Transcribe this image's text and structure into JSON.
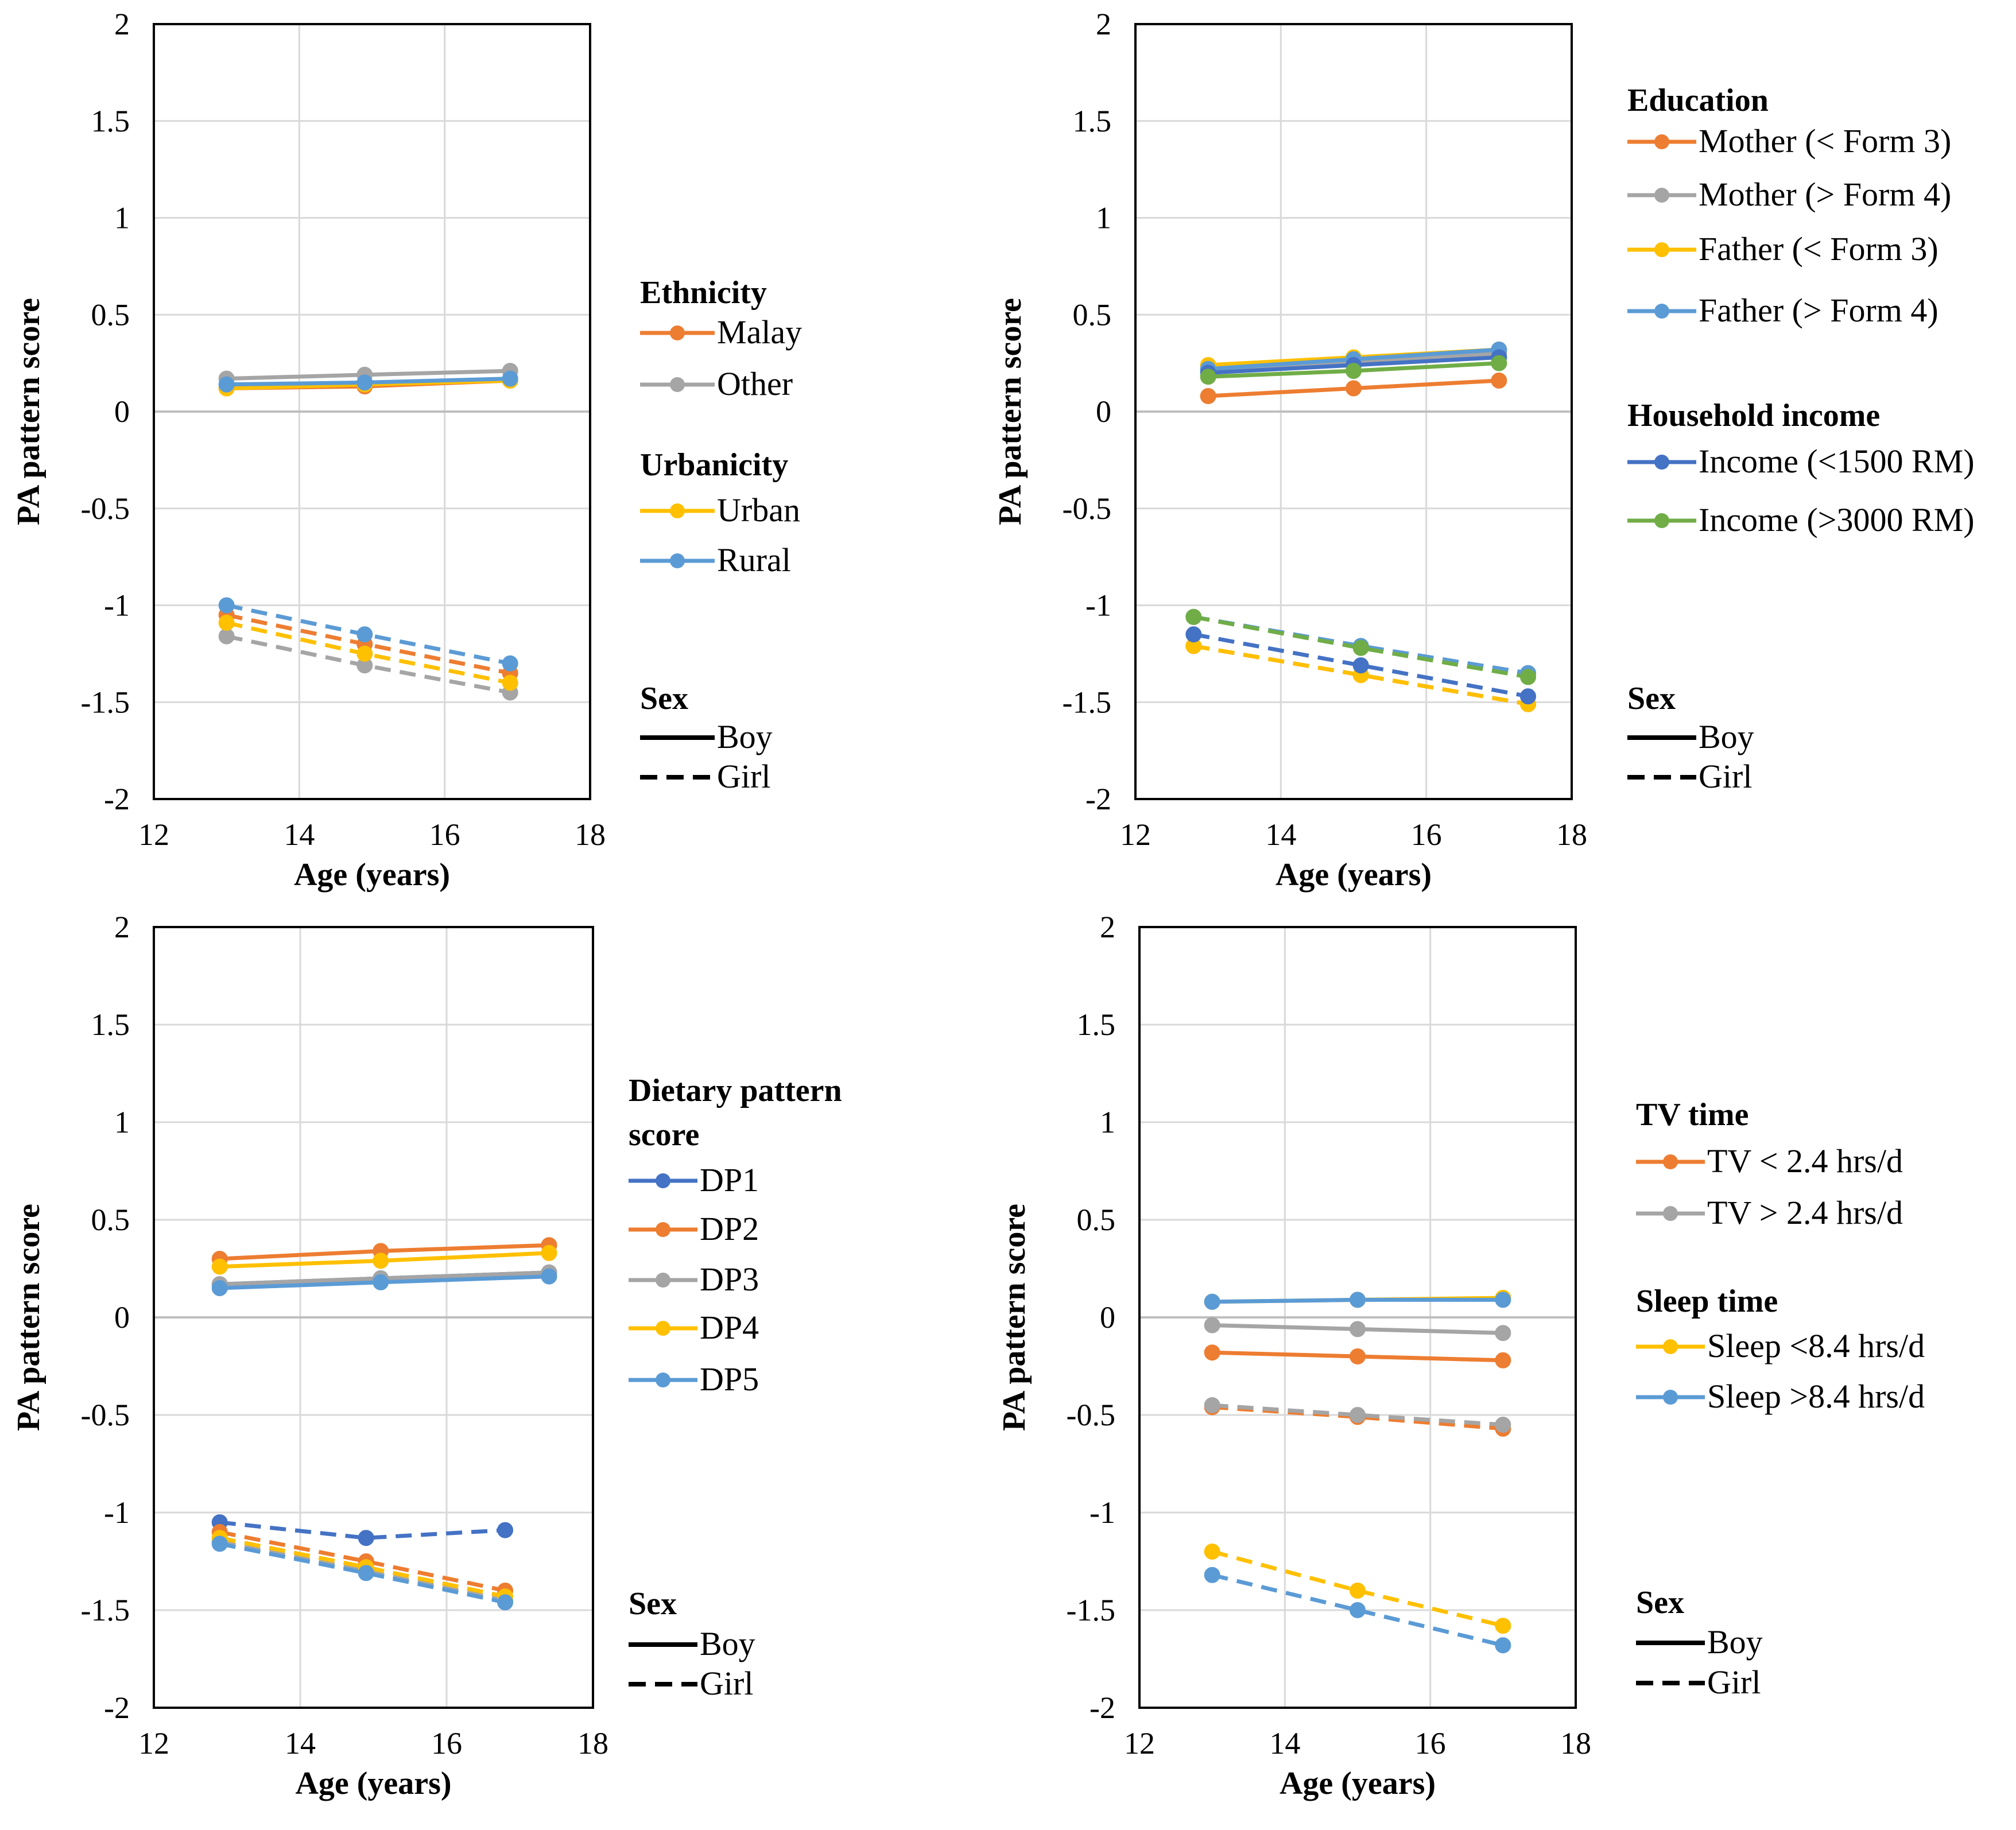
{
  "colors": {
    "orange": "#ED7D31",
    "gray": "#A5A5A5",
    "yellow": "#FFC000",
    "lightblue": "#5B9BD5",
    "darkblue": "#4472C4",
    "green": "#70AD47",
    "grid": "#D9D9D9",
    "zero": "#BFBFBF",
    "frame": "#000000"
  },
  "chart_data": [
    {
      "type": "line",
      "title": "",
      "xlabel": "Age (years)",
      "ylabel": "PA pattern score",
      "xlim": [
        12,
        18
      ],
      "ylim": [
        -2,
        2
      ],
      "xticks": [
        12,
        14,
        16,
        18
      ],
      "yticks": [
        2,
        1.5,
        1,
        0.5,
        0,
        -0.5,
        -1,
        -1.5,
        -2
      ],
      "ytick_labels": [
        "2",
        "1.5",
        "1",
        "0.5",
        "0",
        "-0.5",
        "-1",
        "-1.5",
        "-2"
      ],
      "legend_groups": [
        {
          "title": "Ethnicity",
          "items": [
            {
              "label": "Malay",
              "color": "orange"
            },
            {
              "label": "Other",
              "color": "gray"
            }
          ]
        },
        {
          "title": "Urbanicity",
          "items": [
            {
              "label": "Urban",
              "color": "yellow"
            },
            {
              "label": "Rural",
              "color": "lightblue"
            }
          ]
        }
      ],
      "sex_legend": {
        "title": "Sex",
        "items": [
          {
            "label": "Boy",
            "dash": false
          },
          {
            "label": "Girl",
            "dash": true
          }
        ]
      },
      "series": [
        {
          "name": "Malay - Boy",
          "color": "orange",
          "dash": false,
          "x": [
            13,
            14.9,
            16.9
          ],
          "y": [
            0.12,
            0.13,
            0.16
          ]
        },
        {
          "name": "Other - Boy",
          "color": "gray",
          "dash": false,
          "x": [
            13,
            14.9,
            16.9
          ],
          "y": [
            0.17,
            0.19,
            0.21
          ]
        },
        {
          "name": "Urban - Boy",
          "color": "yellow",
          "dash": false,
          "x": [
            13,
            14.9,
            16.9
          ],
          "y": [
            0.12,
            0.14,
            0.16
          ]
        },
        {
          "name": "Rural - Boy",
          "color": "lightblue",
          "dash": false,
          "x": [
            13,
            14.9,
            16.9
          ],
          "y": [
            0.14,
            0.15,
            0.17
          ]
        },
        {
          "name": "Malay - Girl",
          "color": "orange",
          "dash": true,
          "x": [
            13,
            14.9,
            16.9
          ],
          "y": [
            -1.05,
            -1.2,
            -1.35
          ]
        },
        {
          "name": "Other - Girl",
          "color": "gray",
          "dash": true,
          "x": [
            13,
            14.9,
            16.9
          ],
          "y": [
            -1.16,
            -1.31,
            -1.45
          ]
        },
        {
          "name": "Urban - Girl",
          "color": "yellow",
          "dash": true,
          "x": [
            13,
            14.9,
            16.9
          ],
          "y": [
            -1.09,
            -1.25,
            -1.4
          ]
        },
        {
          "name": "Rural - Girl",
          "color": "lightblue",
          "dash": true,
          "x": [
            13,
            14.9,
            16.9
          ],
          "y": [
            -1.0,
            -1.15,
            -1.3
          ]
        }
      ]
    },
    {
      "type": "line",
      "title": "",
      "xlabel": "Age (years)",
      "ylabel": "PA pattern score",
      "xlim": [
        12,
        18
      ],
      "ylim": [
        -2,
        2
      ],
      "xticks": [
        12,
        14,
        16,
        18
      ],
      "yticks": [
        2,
        1.5,
        1,
        0.5,
        0,
        -0.5,
        -1,
        -1.5,
        -2
      ],
      "ytick_labels": [
        "2",
        "1.5",
        "1",
        "0.5",
        "0",
        "-0.5",
        "-1",
        "-1.5",
        "-2"
      ],
      "legend_groups": [
        {
          "title": "Education",
          "items": [
            {
              "label": "Mother (< Form 3)",
              "color": "orange"
            },
            {
              "label": "Mother (> Form 4)",
              "color": "gray"
            },
            {
              "label": "Father (< Form 3)",
              "color": "yellow"
            },
            {
              "label": "Father (> Form 4)",
              "color": "lightblue"
            }
          ]
        },
        {
          "title": "Household income",
          "items": [
            {
              "label": "Income (<1500 RM)",
              "color": "darkblue"
            },
            {
              "label": "Income (>3000 RM)",
              "color": "green"
            }
          ]
        }
      ],
      "sex_legend": {
        "title": "Sex",
        "items": [
          {
            "label": "Boy",
            "dash": false
          },
          {
            "label": "Girl",
            "dash": true
          }
        ]
      },
      "series": [
        {
          "name": "Mother (< Form 3) - Boy",
          "color": "orange",
          "dash": false,
          "x": [
            13,
            15,
            17
          ],
          "y": [
            0.08,
            0.12,
            0.16
          ]
        },
        {
          "name": "Mother (> Form 4) - Boy",
          "color": "gray",
          "dash": false,
          "x": [
            13,
            15,
            17
          ],
          "y": [
            0.22,
            0.26,
            0.3
          ]
        },
        {
          "name": "Father (< Form 3) - Boy",
          "color": "yellow",
          "dash": false,
          "x": [
            13,
            15,
            17
          ],
          "y": [
            0.24,
            0.28,
            0.32
          ]
        },
        {
          "name": "Father (> Form 4) - Boy",
          "color": "lightblue",
          "dash": false,
          "x": [
            13,
            15,
            17
          ],
          "y": [
            0.22,
            0.27,
            0.32
          ]
        },
        {
          "name": "Income (<1500 RM) - Boy",
          "color": "darkblue",
          "dash": false,
          "x": [
            13,
            15,
            17
          ],
          "y": [
            0.2,
            0.24,
            0.28
          ]
        },
        {
          "name": "Income (>3000 RM) - Boy",
          "color": "green",
          "dash": false,
          "x": [
            13,
            15,
            17
          ],
          "y": [
            0.18,
            0.21,
            0.25
          ]
        },
        {
          "name": "Mother (< Form 3) - Girl",
          "color": "orange",
          "dash": true,
          "x": [
            12.8,
            15.1,
            17.4
          ],
          "y": [
            -1.21,
            -1.36,
            -1.51
          ]
        },
        {
          "name": "Mother (> Form 4) - Girl",
          "color": "gray",
          "dash": true,
          "x": [
            12.8,
            15.1,
            17.4
          ],
          "y": [
            -1.06,
            -1.21,
            -1.35
          ]
        },
        {
          "name": "Father (< Form 3) - Girl",
          "color": "yellow",
          "dash": true,
          "x": [
            12.8,
            15.1,
            17.4
          ],
          "y": [
            -1.21,
            -1.36,
            -1.51
          ]
        },
        {
          "name": "Father (> Form 4) - Girl",
          "color": "lightblue",
          "dash": true,
          "x": [
            12.8,
            15.1,
            17.4
          ],
          "y": [
            -1.06,
            -1.21,
            -1.35
          ]
        },
        {
          "name": "Income (<1500 RM) - Girl",
          "color": "darkblue",
          "dash": true,
          "x": [
            12.8,
            15.1,
            17.4
          ],
          "y": [
            -1.15,
            -1.31,
            -1.47
          ]
        },
        {
          "name": "Income (>3000 RM) - Girl",
          "color": "green",
          "dash": true,
          "x": [
            12.8,
            15.1,
            17.4
          ],
          "y": [
            -1.06,
            -1.22,
            -1.37
          ]
        }
      ]
    },
    {
      "type": "line",
      "title": "",
      "xlabel": "Age (years)",
      "ylabel": "PA pattern score",
      "xlim": [
        12,
        18
      ],
      "ylim": [
        -2,
        2
      ],
      "xticks": [
        12,
        14,
        16,
        18
      ],
      "yticks": [
        2,
        1.5,
        1,
        0.5,
        0,
        -0.5,
        -1,
        -1.5,
        -2
      ],
      "ytick_labels": [
        "2",
        "1.5",
        "1",
        "0.5",
        "0",
        "-0.5",
        "-1",
        "-1.5",
        "-2"
      ],
      "legend_groups": [
        {
          "title": "Dietary pattern score",
          "items": [
            {
              "label": "DP1",
              "color": "darkblue"
            },
            {
              "label": "DP2",
              "color": "orange"
            },
            {
              "label": "DP3",
              "color": "gray"
            },
            {
              "label": "DP4",
              "color": "yellow"
            },
            {
              "label": "DP5",
              "color": "lightblue"
            }
          ]
        }
      ],
      "sex_legend": {
        "title": "Sex",
        "items": [
          {
            "label": "Boy",
            "dash": false
          },
          {
            "label": "Girl",
            "dash": true
          }
        ]
      },
      "series": [
        {
          "name": "DP1 - Boy",
          "color": "darkblue",
          "dash": false,
          "x": [
            12.9,
            15.1,
            17.4
          ],
          "y": [
            0.17,
            0.2,
            0.23
          ]
        },
        {
          "name": "DP2 - Boy",
          "color": "orange",
          "dash": false,
          "x": [
            12.9,
            15.1,
            17.4
          ],
          "y": [
            0.3,
            0.34,
            0.37
          ]
        },
        {
          "name": "DP3 - Boy",
          "color": "gray",
          "dash": false,
          "x": [
            12.9,
            15.1,
            17.4
          ],
          "y": [
            0.17,
            0.2,
            0.23
          ]
        },
        {
          "name": "DP4 - Boy",
          "color": "yellow",
          "dash": false,
          "x": [
            12.9,
            15.1,
            17.4
          ],
          "y": [
            0.26,
            0.29,
            0.33
          ]
        },
        {
          "name": "DP5 - Boy",
          "color": "lightblue",
          "dash": false,
          "x": [
            12.9,
            15.1,
            17.4
          ],
          "y": [
            0.15,
            0.18,
            0.21
          ]
        },
        {
          "name": "DP1 - Girl",
          "color": "darkblue",
          "dash": true,
          "x": [
            12.9,
            14.9,
            16.8
          ],
          "y": [
            -1.05,
            -1.13,
            -1.09
          ]
        },
        {
          "name": "DP2 - Girl",
          "color": "orange",
          "dash": true,
          "x": [
            12.9,
            14.9,
            16.8
          ],
          "y": [
            -1.1,
            -1.25,
            -1.4
          ]
        },
        {
          "name": "DP3 - Girl",
          "color": "gray",
          "dash": true,
          "x": [
            12.9,
            14.9,
            16.8
          ],
          "y": [
            -1.15,
            -1.3,
            -1.45
          ]
        },
        {
          "name": "DP4 - Girl",
          "color": "yellow",
          "dash": true,
          "x": [
            12.9,
            14.9,
            16.8
          ],
          "y": [
            -1.13,
            -1.28,
            -1.43
          ]
        },
        {
          "name": "DP5 - Girl",
          "color": "lightblue",
          "dash": true,
          "x": [
            12.9,
            14.9,
            16.8
          ],
          "y": [
            -1.16,
            -1.31,
            -1.46
          ]
        }
      ]
    },
    {
      "type": "line",
      "title": "",
      "xlabel": "Age (years)",
      "ylabel": "PA pattern score",
      "xlim": [
        12,
        18
      ],
      "ylim": [
        -2,
        2
      ],
      "xticks": [
        12,
        14,
        16,
        18
      ],
      "yticks": [
        2,
        1.5,
        1,
        0.5,
        0,
        -0.5,
        -1,
        -1.5,
        -2
      ],
      "ytick_labels": [
        "2",
        "1.5",
        "1",
        "0.5",
        "0",
        "-0.5",
        "-1",
        "-1.5",
        "-2"
      ],
      "legend_groups": [
        {
          "title": "TV time",
          "items": [
            {
              "label": "TV < 2.4 hrs/d",
              "color": "orange"
            },
            {
              "label": "TV > 2.4 hrs/d",
              "color": "gray"
            }
          ]
        },
        {
          "title": "Sleep time",
          "items": [
            {
              "label": "Sleep <8.4 hrs/d",
              "color": "yellow"
            },
            {
              "label": "Sleep >8.4 hrs/d",
              "color": "lightblue"
            }
          ]
        }
      ],
      "sex_legend": {
        "title": "Sex",
        "items": [
          {
            "label": "Boy",
            "dash": false
          },
          {
            "label": "Girl",
            "dash": true
          }
        ]
      },
      "series": [
        {
          "name": "TV < 2.4 hrs/d - Boy",
          "color": "orange",
          "dash": false,
          "x": [
            13,
            15,
            17
          ],
          "y": [
            -0.18,
            -0.2,
            -0.22
          ]
        },
        {
          "name": "TV > 2.4 hrs/d - Boy",
          "color": "gray",
          "dash": false,
          "x": [
            13,
            15,
            17
          ],
          "y": [
            -0.04,
            -0.06,
            -0.08
          ]
        },
        {
          "name": "Sleep <8.4 hrs/d - Boy",
          "color": "yellow",
          "dash": false,
          "x": [
            13,
            15,
            17
          ],
          "y": [
            0.08,
            0.09,
            0.1
          ]
        },
        {
          "name": "Sleep >8.4 hrs/d - Boy",
          "color": "lightblue",
          "dash": false,
          "x": [
            13,
            15,
            17
          ],
          "y": [
            0.08,
            0.09,
            0.09
          ]
        },
        {
          "name": "TV < 2.4 hrs/d - Girl",
          "color": "orange",
          "dash": true,
          "x": [
            13,
            15,
            17
          ],
          "y": [
            -0.46,
            -0.51,
            -0.57
          ]
        },
        {
          "name": "TV > 2.4 hrs/d - Girl",
          "color": "gray",
          "dash": true,
          "x": [
            13,
            15,
            17
          ],
          "y": [
            -0.45,
            -0.5,
            -0.55
          ]
        },
        {
          "name": "Sleep <8.4 hrs/d - Girl",
          "color": "yellow",
          "dash": true,
          "x": [
            13,
            15,
            17
          ],
          "y": [
            -1.2,
            -1.4,
            -1.58
          ]
        },
        {
          "name": "Sleep >8.4 hrs/d - Girl",
          "color": "lightblue",
          "dash": true,
          "x": [
            13,
            15,
            17
          ],
          "y": [
            -1.32,
            -1.5,
            -1.68
          ]
        }
      ]
    }
  ]
}
